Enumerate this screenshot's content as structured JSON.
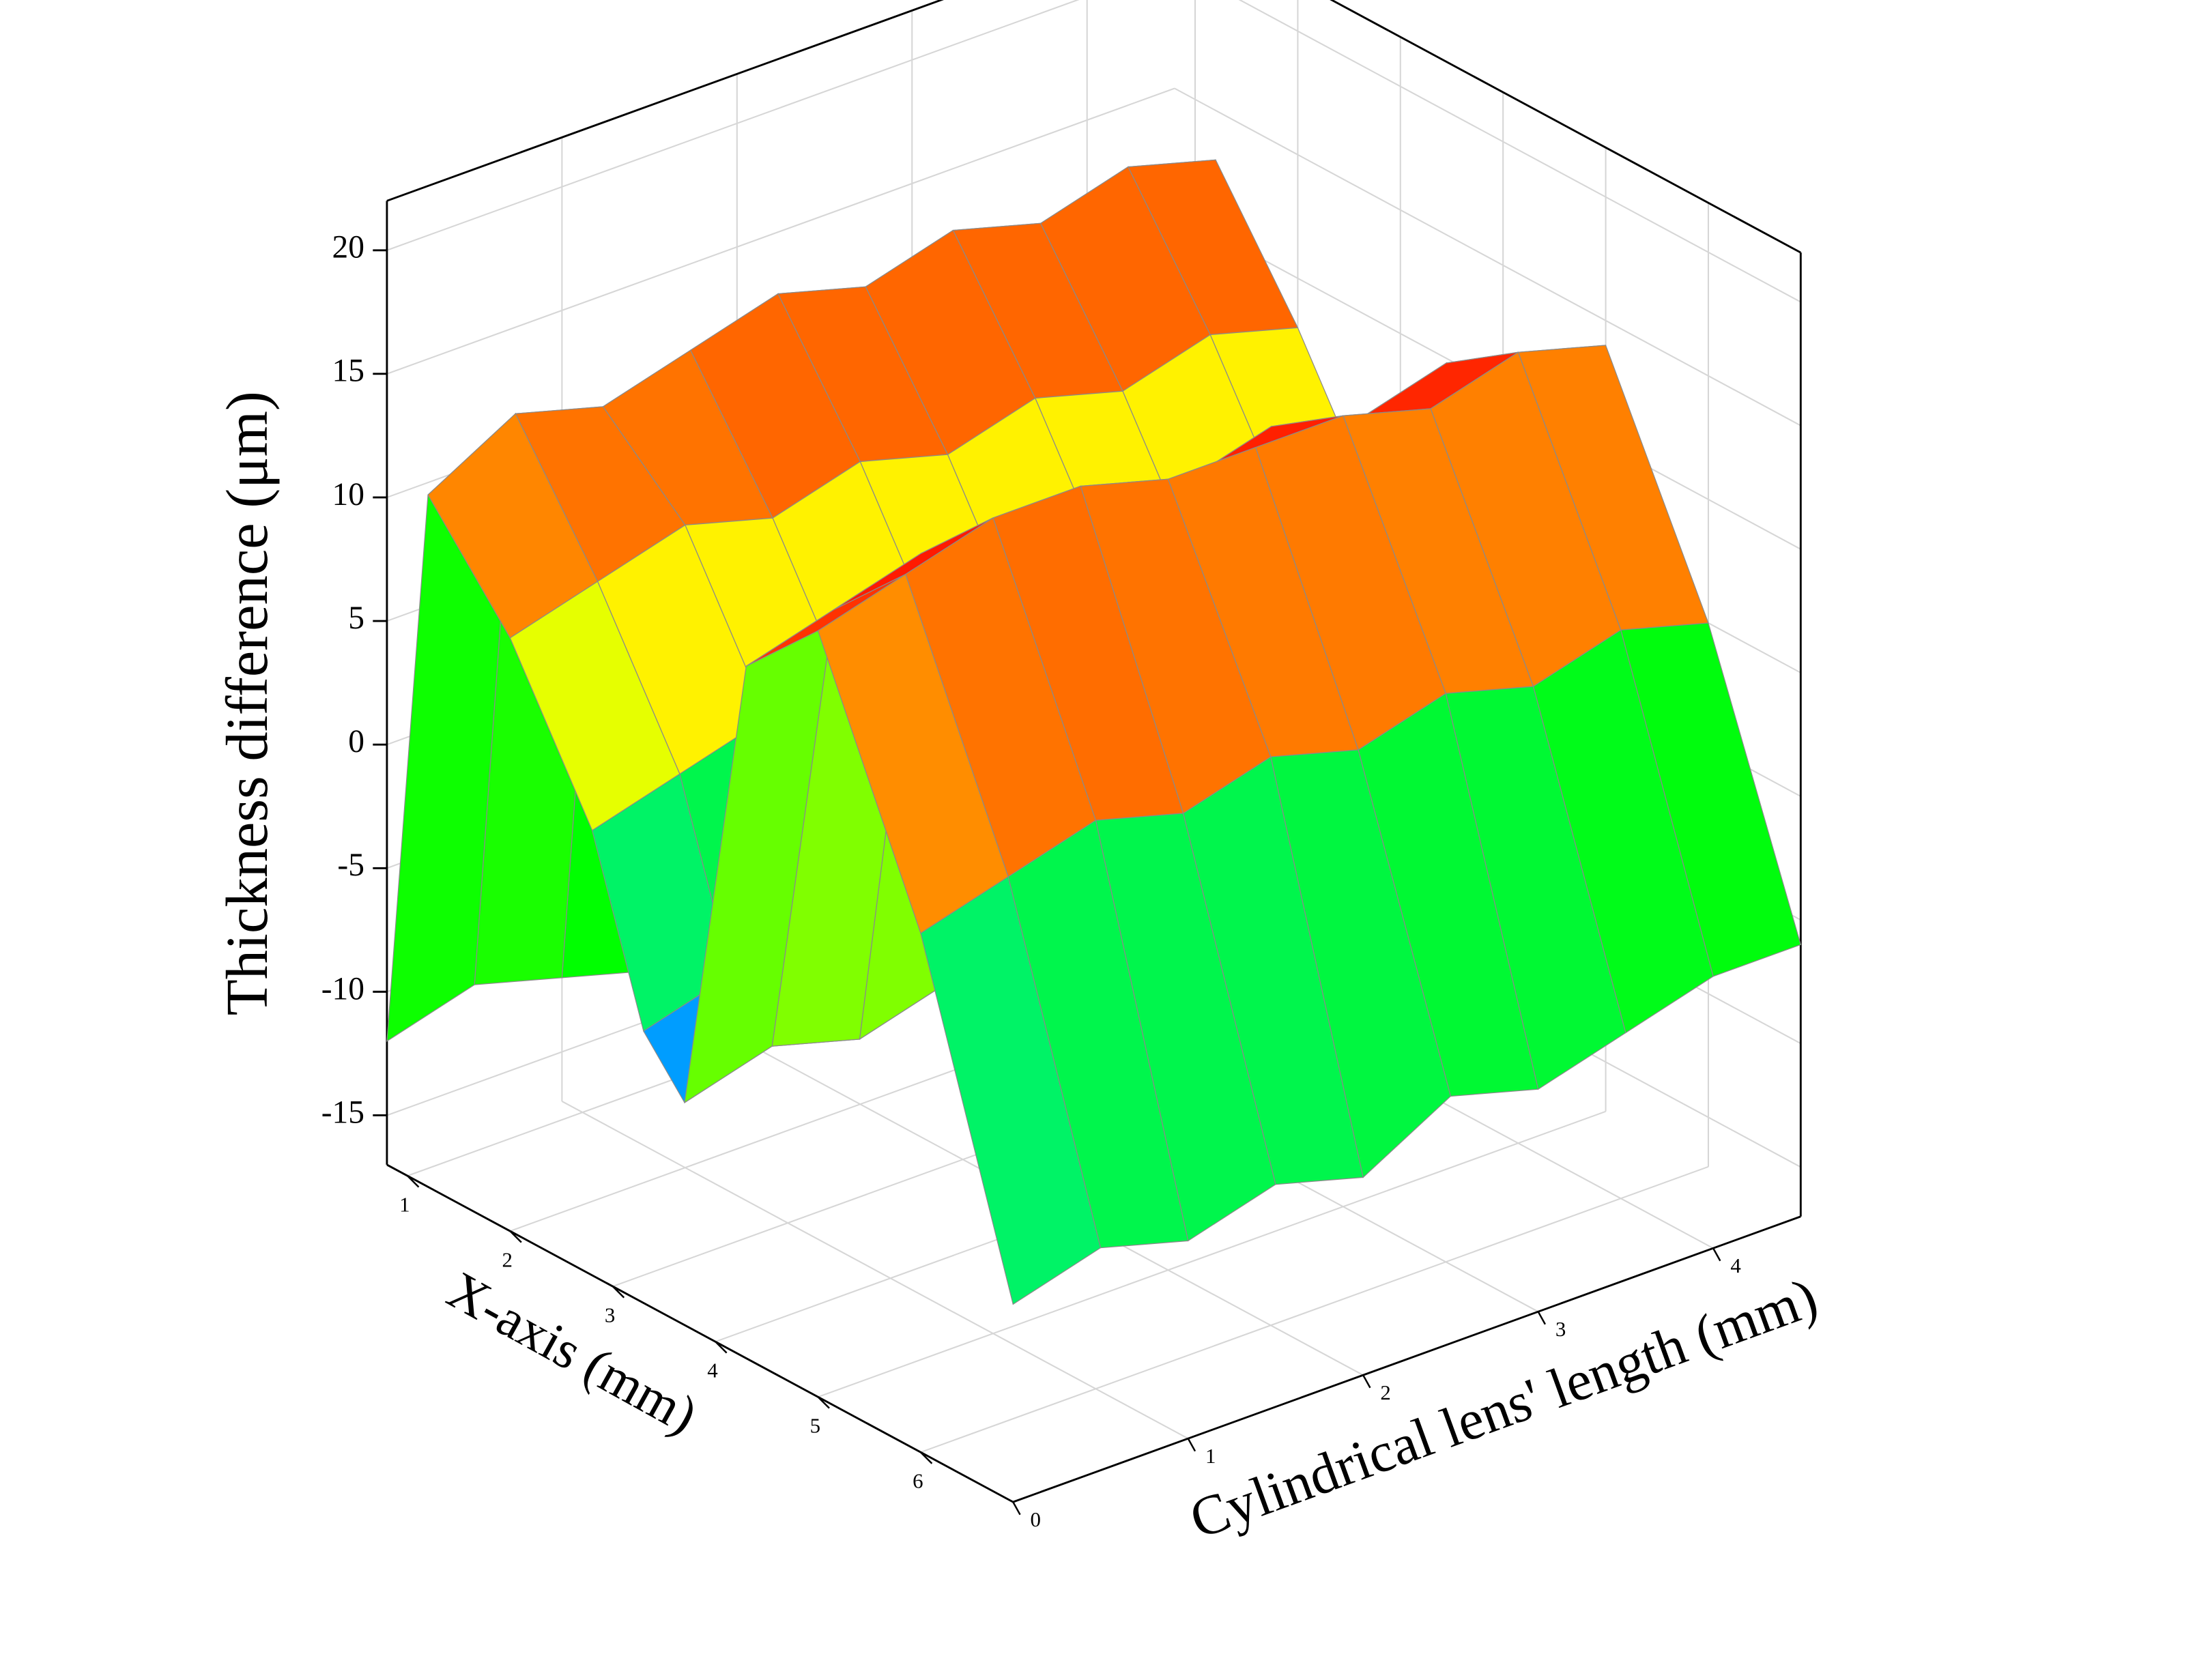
{
  "chart_data": {
    "type": "surface",
    "xlabel": "X-axis (mm)",
    "ylabel": "Cylindrical lens' length (mm)",
    "zlabel": "Thickness difference (μm)",
    "xlim": [
      0.8,
      6.9
    ],
    "ylim": [
      0,
      4.5
    ],
    "zlim": [
      -17,
      22
    ],
    "xticks": [
      1,
      2,
      3,
      4,
      5,
      6
    ],
    "yticks": [
      0,
      1,
      2,
      3,
      4
    ],
    "zticks": [
      -15,
      -10,
      -5,
      0,
      5,
      10,
      15,
      20
    ],
    "grid": true,
    "colorscale": [
      "#6a00d0",
      "#0000ff",
      "#00e0ff",
      "#00ff00",
      "#ffff00",
      "#ff8000",
      "#ff0000",
      "#8b0000"
    ],
    "x": [
      0.8,
      1.2,
      2,
      2.8,
      3.3,
      3.7,
      4.3,
      5,
      6,
      6.9
    ],
    "y": [
      0,
      0.5,
      1,
      1.5,
      2,
      2.5,
      3,
      3.5,
      4,
      4.5
    ],
    "z": [
      [
        -12,
        11,
        7,
        1,
        -6,
        -8,
        11,
        14,
        4,
        -9
      ],
      [
        -11,
        13,
        8,
        2,
        -5,
        -7,
        12,
        15,
        5,
        -8
      ],
      [
        -12,
        12,
        9,
        3,
        -6,
        -8,
        13,
        16,
        6,
        -9
      ],
      [
        -13,
        13,
        8,
        2,
        -5,
        -7,
        12,
        16,
        5,
        -8
      ],
      [
        -12,
        14,
        9,
        3,
        -4,
        -6,
        13,
        15,
        6,
        -9
      ],
      [
        -11,
        13,
        8,
        2,
        -5,
        -7,
        12,
        15,
        5,
        -7
      ],
      [
        -12,
        14,
        9,
        3,
        -4,
        -6,
        13,
        15,
        6,
        -8
      ],
      [
        -13,
        13,
        8,
        2,
        -5,
        -7,
        12,
        14,
        5,
        -7
      ],
      [
        -12,
        14,
        9,
        3,
        -4,
        -6,
        13,
        15,
        6,
        -6
      ],
      [
        -11,
        13,
        8,
        2,
        -5,
        -7,
        12,
        14,
        5,
        -6
      ]
    ]
  }
}
